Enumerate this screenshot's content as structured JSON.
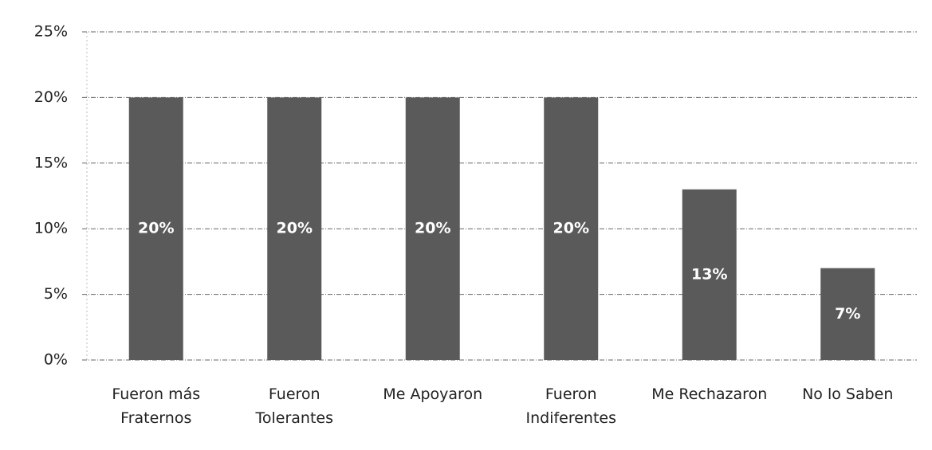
{
  "chart_data": {
    "type": "bar",
    "categories": [
      "Fueron más Fraternos",
      "Fueron Tolerantes",
      "Me Apoyaron",
      "Fueron Indiferentes",
      "Me Rechazaron",
      "No lo Saben"
    ],
    "values": [
      20,
      20,
      20,
      20,
      13,
      7
    ],
    "value_labels": [
      "20%",
      "20%",
      "20%",
      "20%",
      "13%",
      "7%"
    ],
    "color": "#5a5a5a",
    "ylim": [
      0,
      25
    ],
    "yticks": [
      {
        "value": 0,
        "label": "0%"
      },
      {
        "value": 5,
        "label": "5%"
      },
      {
        "value": 10,
        "label": "10%"
      },
      {
        "value": 15,
        "label": "15%"
      },
      {
        "value": 20,
        "label": "20%"
      },
      {
        "value": 25,
        "label": "25%"
      }
    ],
    "grid": true
  }
}
